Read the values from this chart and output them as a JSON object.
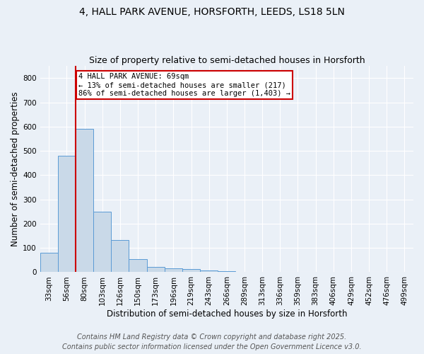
{
  "title_line1": "4, HALL PARK AVENUE, HORSFORTH, LEEDS, LS18 5LN",
  "title_line2": "Size of property relative to semi-detached houses in Horsforth",
  "xlabel": "Distribution of semi-detached houses by size in Horsforth",
  "ylabel": "Number of semi-detached properties",
  "categories": [
    "33sqm",
    "56sqm",
    "80sqm",
    "103sqm",
    "126sqm",
    "150sqm",
    "173sqm",
    "196sqm",
    "219sqm",
    "243sqm",
    "266sqm",
    "289sqm",
    "313sqm",
    "336sqm",
    "359sqm",
    "383sqm",
    "406sqm",
    "429sqm",
    "452sqm",
    "476sqm",
    "499sqm"
  ],
  "values": [
    80,
    480,
    590,
    250,
    133,
    55,
    22,
    17,
    12,
    7,
    5,
    1,
    0,
    0,
    0,
    0,
    0,
    0,
    0,
    0,
    0
  ],
  "bar_color": "#c9d9e8",
  "bar_edge_color": "#5b9bd5",
  "red_line_x": 1.5,
  "annotation_text": "4 HALL PARK AVENUE: 69sqm\n← 13% of semi-detached houses are smaller (217)\n86% of semi-detached houses are larger (1,403) →",
  "annotation_box_color": "#ffffff",
  "annotation_box_edge": "#cc0000",
  "ylim": [
    0,
    850
  ],
  "yticks": [
    0,
    100,
    200,
    300,
    400,
    500,
    600,
    700,
    800
  ],
  "footer_line1": "Contains HM Land Registry data © Crown copyright and database right 2025.",
  "footer_line2": "Contains public sector information licensed under the Open Government Licence v3.0.",
  "background_color": "#eaf0f7",
  "plot_background": "#eaf0f7",
  "grid_color": "#ffffff",
  "title_fontsize": 10,
  "subtitle_fontsize": 9,
  "axis_label_fontsize": 8.5,
  "tick_fontsize": 7.5,
  "footer_fontsize": 7,
  "annot_fontsize": 7.5
}
